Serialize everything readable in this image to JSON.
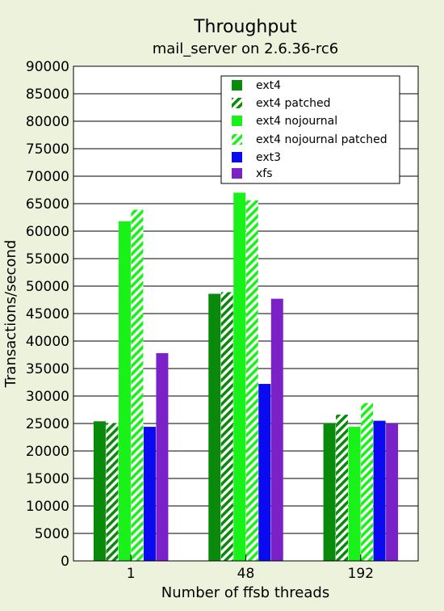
{
  "chart_data": {
    "type": "bar",
    "title": "Throughput",
    "subtitle": "mail_server on 2.6.36-rc6",
    "xlabel": "Number of ffsb threads",
    "ylabel": "Transactions/second",
    "ylim": [
      0,
      90000
    ],
    "ytick_step": 5000,
    "categories": [
      "1",
      "48",
      "192"
    ],
    "legend_position": "top-right",
    "grid": true,
    "series": [
      {
        "name": "ext4",
        "color": "#0a8a0a",
        "pattern": "solid",
        "values": [
          25400,
          48600,
          25100
        ]
      },
      {
        "name": "ext4 patched",
        "color": "#0a8a0a",
        "pattern": "hatched",
        "values": [
          25100,
          48900,
          26600
        ]
      },
      {
        "name": "ext4 nojournal",
        "color": "#19f219",
        "pattern": "solid",
        "values": [
          61800,
          67000,
          24400
        ]
      },
      {
        "name": "ext4 nojournal patched",
        "color": "#19f219",
        "pattern": "hatched",
        "values": [
          63900,
          65600,
          28700
        ]
      },
      {
        "name": "ext3",
        "color": "#0a0af0",
        "pattern": "solid",
        "values": [
          24400,
          32200,
          25500
        ]
      },
      {
        "name": "xfs",
        "color": "#7a22c8",
        "pattern": "solid",
        "values": [
          37800,
          47700,
          25000
        ]
      }
    ]
  }
}
